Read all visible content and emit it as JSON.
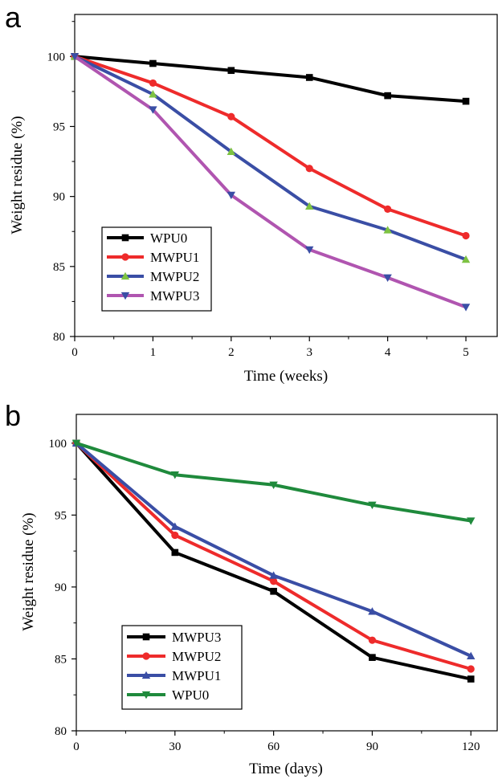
{
  "chart_data": [
    {
      "panel_label": "a",
      "type": "line",
      "xlabel": "Time (weeks)",
      "ylabel": "Weight residue (%)",
      "xlim": [
        0,
        5.4
      ],
      "ylim": [
        80,
        103
      ],
      "xticks": [
        0,
        1,
        2,
        3,
        4,
        5
      ],
      "yticks": [
        80,
        85,
        90,
        95,
        100
      ],
      "x": [
        0,
        1,
        2,
        3,
        4,
        5
      ],
      "legend_position": "bottom-left",
      "series": [
        {
          "name": "WPU0",
          "color": "#000000",
          "marker": "square",
          "values": [
            100,
            99.5,
            99.0,
            98.5,
            97.2,
            96.8
          ]
        },
        {
          "name": "MWPU1",
          "color": "#ee2b2b",
          "marker": "circle",
          "values": [
            100,
            98.1,
            95.7,
            92.0,
            89.1,
            87.2
          ]
        },
        {
          "name": "MWPU2",
          "color": "#3a4ea5",
          "marker": "triangle-up",
          "marker_color": "#7dc242",
          "values": [
            100,
            97.3,
            93.2,
            89.3,
            87.6,
            85.5
          ]
        },
        {
          "name": "MWPU3",
          "color": "#b055b0",
          "marker": "triangle-down",
          "marker_color": "#3a4ea5",
          "values": [
            100,
            96.2,
            90.1,
            86.2,
            84.2,
            82.1
          ]
        }
      ]
    },
    {
      "panel_label": "b",
      "type": "line",
      "xlabel": "Time (days)",
      "ylabel": "Weight residue (%)",
      "xlim": [
        0,
        128
      ],
      "ylim": [
        80,
        102
      ],
      "xticks": [
        0,
        30,
        60,
        90,
        120
      ],
      "yticks": [
        80,
        85,
        90,
        95,
        100
      ],
      "x": [
        0,
        30,
        60,
        90,
        120
      ],
      "legend_position": "bottom-left",
      "series": [
        {
          "name": "MWPU3",
          "color": "#000000",
          "marker": "square",
          "values": [
            100,
            92.4,
            89.7,
            85.1,
            83.6
          ]
        },
        {
          "name": "MWPU2",
          "color": "#ee2b2b",
          "marker": "circle",
          "values": [
            100,
            93.6,
            90.4,
            86.3,
            84.3
          ]
        },
        {
          "name": "MWPU1",
          "color": "#3a4ea5",
          "marker": "triangle-up",
          "values": [
            100,
            94.2,
            90.8,
            88.3,
            85.2
          ]
        },
        {
          "name": "WPU0",
          "color": "#1f8a3c",
          "marker": "triangle-down",
          "values": [
            100,
            97.8,
            97.1,
            95.7,
            94.6
          ]
        }
      ]
    }
  ]
}
